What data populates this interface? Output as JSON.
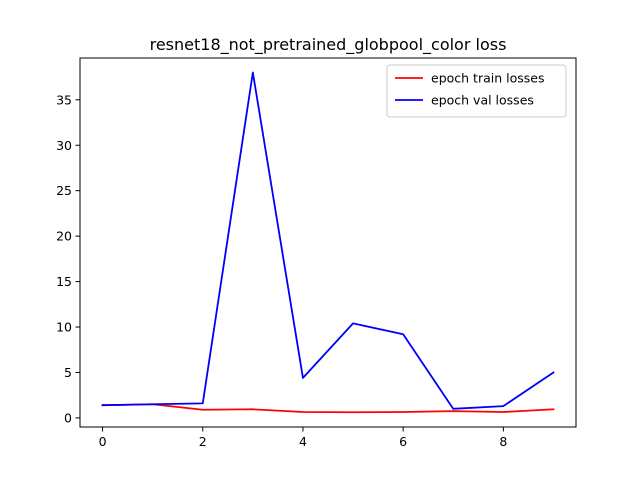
{
  "chart_data": {
    "type": "line",
    "title": "resnet18_not_pretrained_globpool_color loss",
    "xlabel": "",
    "ylabel": "",
    "x": [
      0,
      1,
      2,
      3,
      4,
      5,
      6,
      7,
      8,
      9
    ],
    "xlim": [
      -0.45,
      9.45
    ],
    "ylim": [
      -1.0,
      39.6
    ],
    "xticks": [
      0,
      2,
      4,
      6,
      8
    ],
    "yticks": [
      0,
      5,
      10,
      15,
      20,
      25,
      30,
      35
    ],
    "grid": false,
    "legend_position": "upper right",
    "series": [
      {
        "name": "epoch train losses",
        "color": "#ff0000",
        "values": [
          1.4,
          1.5,
          0.9,
          0.95,
          0.65,
          0.62,
          0.65,
          0.75,
          0.65,
          0.95
        ]
      },
      {
        "name": "epoch val losses",
        "color": "#0000ff",
        "values": [
          1.4,
          1.5,
          1.6,
          38.0,
          4.4,
          10.4,
          9.2,
          1.0,
          1.3,
          5.0
        ]
      }
    ]
  }
}
